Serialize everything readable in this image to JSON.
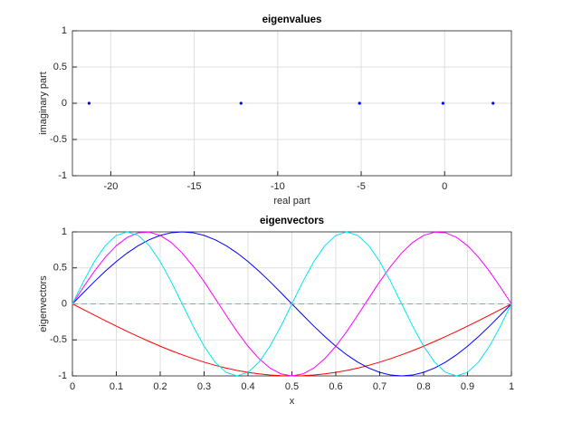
{
  "chart_data": [
    {
      "type": "scatter",
      "title": "eigenvalues",
      "xlabel": "real part",
      "ylabel": "imaginary part",
      "x": [
        -21.3,
        -12.2,
        -5.1,
        -0.1,
        2.9
      ],
      "values": [
        0,
        0,
        0,
        0,
        0
      ],
      "color": "#0000ff",
      "xlim": [
        -22.3,
        4
      ],
      "ylim": [
        -1,
        1
      ],
      "xticks": [
        -20,
        -15,
        -10,
        -5,
        0
      ],
      "yticks": [
        -1,
        -0.5,
        0,
        0.5,
        1
      ],
      "grid": true
    },
    {
      "type": "line",
      "title": "eigenvectors",
      "xlabel": "x",
      "ylabel": "eigenvectors",
      "x": [
        0,
        0.025,
        0.05,
        0.075,
        0.1,
        0.125,
        0.15,
        0.175,
        0.2,
        0.225,
        0.25,
        0.275,
        0.3,
        0.325,
        0.35,
        0.375,
        0.4,
        0.425,
        0.45,
        0.475,
        0.5,
        0.525,
        0.55,
        0.575,
        0.6,
        0.625,
        0.65,
        0.675,
        0.7,
        0.725,
        0.75,
        0.775,
        0.8,
        0.825,
        0.85,
        0.875,
        0.9,
        0.925,
        0.95,
        0.975,
        1
      ],
      "series": [
        {
          "color": "#ff0000",
          "values": [
            0,
            -0.078,
            -0.156,
            -0.233,
            -0.309,
            -0.383,
            -0.454,
            -0.522,
            -0.588,
            -0.649,
            -0.707,
            -0.76,
            -0.809,
            -0.853,
            -0.891,
            -0.924,
            -0.951,
            -0.972,
            -0.988,
            -0.997,
            -1,
            -0.997,
            -0.988,
            -0.972,
            -0.951,
            -0.924,
            -0.891,
            -0.853,
            -0.809,
            -0.76,
            -0.707,
            -0.649,
            -0.588,
            -0.522,
            -0.454,
            -0.383,
            -0.309,
            -0.233,
            -0.156,
            -0.078,
            0
          ]
        },
        {
          "color": "#0000ff",
          "values": [
            0,
            0.156,
            0.309,
            0.454,
            0.588,
            0.707,
            0.809,
            0.891,
            0.951,
            0.988,
            1,
            0.988,
            0.951,
            0.891,
            0.809,
            0.707,
            0.588,
            0.454,
            0.309,
            0.156,
            0,
            -0.156,
            -0.309,
            -0.454,
            -0.588,
            -0.707,
            -0.809,
            -0.891,
            -0.951,
            -0.988,
            -1,
            -0.988,
            -0.951,
            -0.891,
            -0.809,
            -0.707,
            -0.588,
            -0.454,
            -0.309,
            -0.156,
            0
          ]
        },
        {
          "color": "#ff00ff",
          "values": [
            0,
            0.233,
            0.454,
            0.649,
            0.809,
            0.924,
            0.988,
            0.997,
            0.951,
            0.853,
            0.707,
            0.522,
            0.309,
            0.078,
            -0.156,
            -0.383,
            -0.588,
            -0.76,
            -0.891,
            -0.972,
            -1,
            -0.972,
            -0.891,
            -0.76,
            -0.588,
            -0.383,
            -0.156,
            0.078,
            0.309,
            0.522,
            0.707,
            0.853,
            0.951,
            0.997,
            0.988,
            0.924,
            0.809,
            0.649,
            0.454,
            0.233,
            0
          ]
        },
        {
          "color": "#00e5ee",
          "values": [
            0,
            0.309,
            0.588,
            0.809,
            0.951,
            1,
            0.951,
            0.809,
            0.588,
            0.309,
            0,
            -0.309,
            -0.588,
            -0.809,
            -0.951,
            -1,
            -0.951,
            -0.809,
            -0.588,
            -0.309,
            0,
            0.309,
            0.588,
            0.809,
            0.951,
            1,
            0.951,
            0.809,
            0.588,
            0.309,
            0,
            -0.309,
            -0.588,
            -0.809,
            -0.951,
            -1,
            -0.951,
            -0.809,
            -0.588,
            -0.309,
            0
          ]
        },
        {
          "color": "#00e5ee",
          "dashed": true,
          "values": [
            0,
            0,
            0,
            0,
            0,
            0,
            0,
            0,
            0,
            0,
            0,
            0,
            0,
            0,
            0,
            0,
            0,
            0,
            0,
            0,
            0,
            0,
            0,
            0,
            0,
            0,
            0,
            0,
            0,
            0,
            0,
            0,
            0,
            0,
            0,
            0,
            0,
            0,
            0,
            0,
            0
          ]
        }
      ],
      "xlim": [
        0,
        1
      ],
      "ylim": [
        -1,
        1
      ],
      "xticks": [
        0,
        0.1,
        0.2,
        0.3,
        0.4,
        0.5,
        0.6,
        0.7,
        0.8,
        0.9,
        1
      ],
      "yticks": [
        -1,
        -0.5,
        0,
        0.5,
        1
      ],
      "grid": true
    }
  ]
}
